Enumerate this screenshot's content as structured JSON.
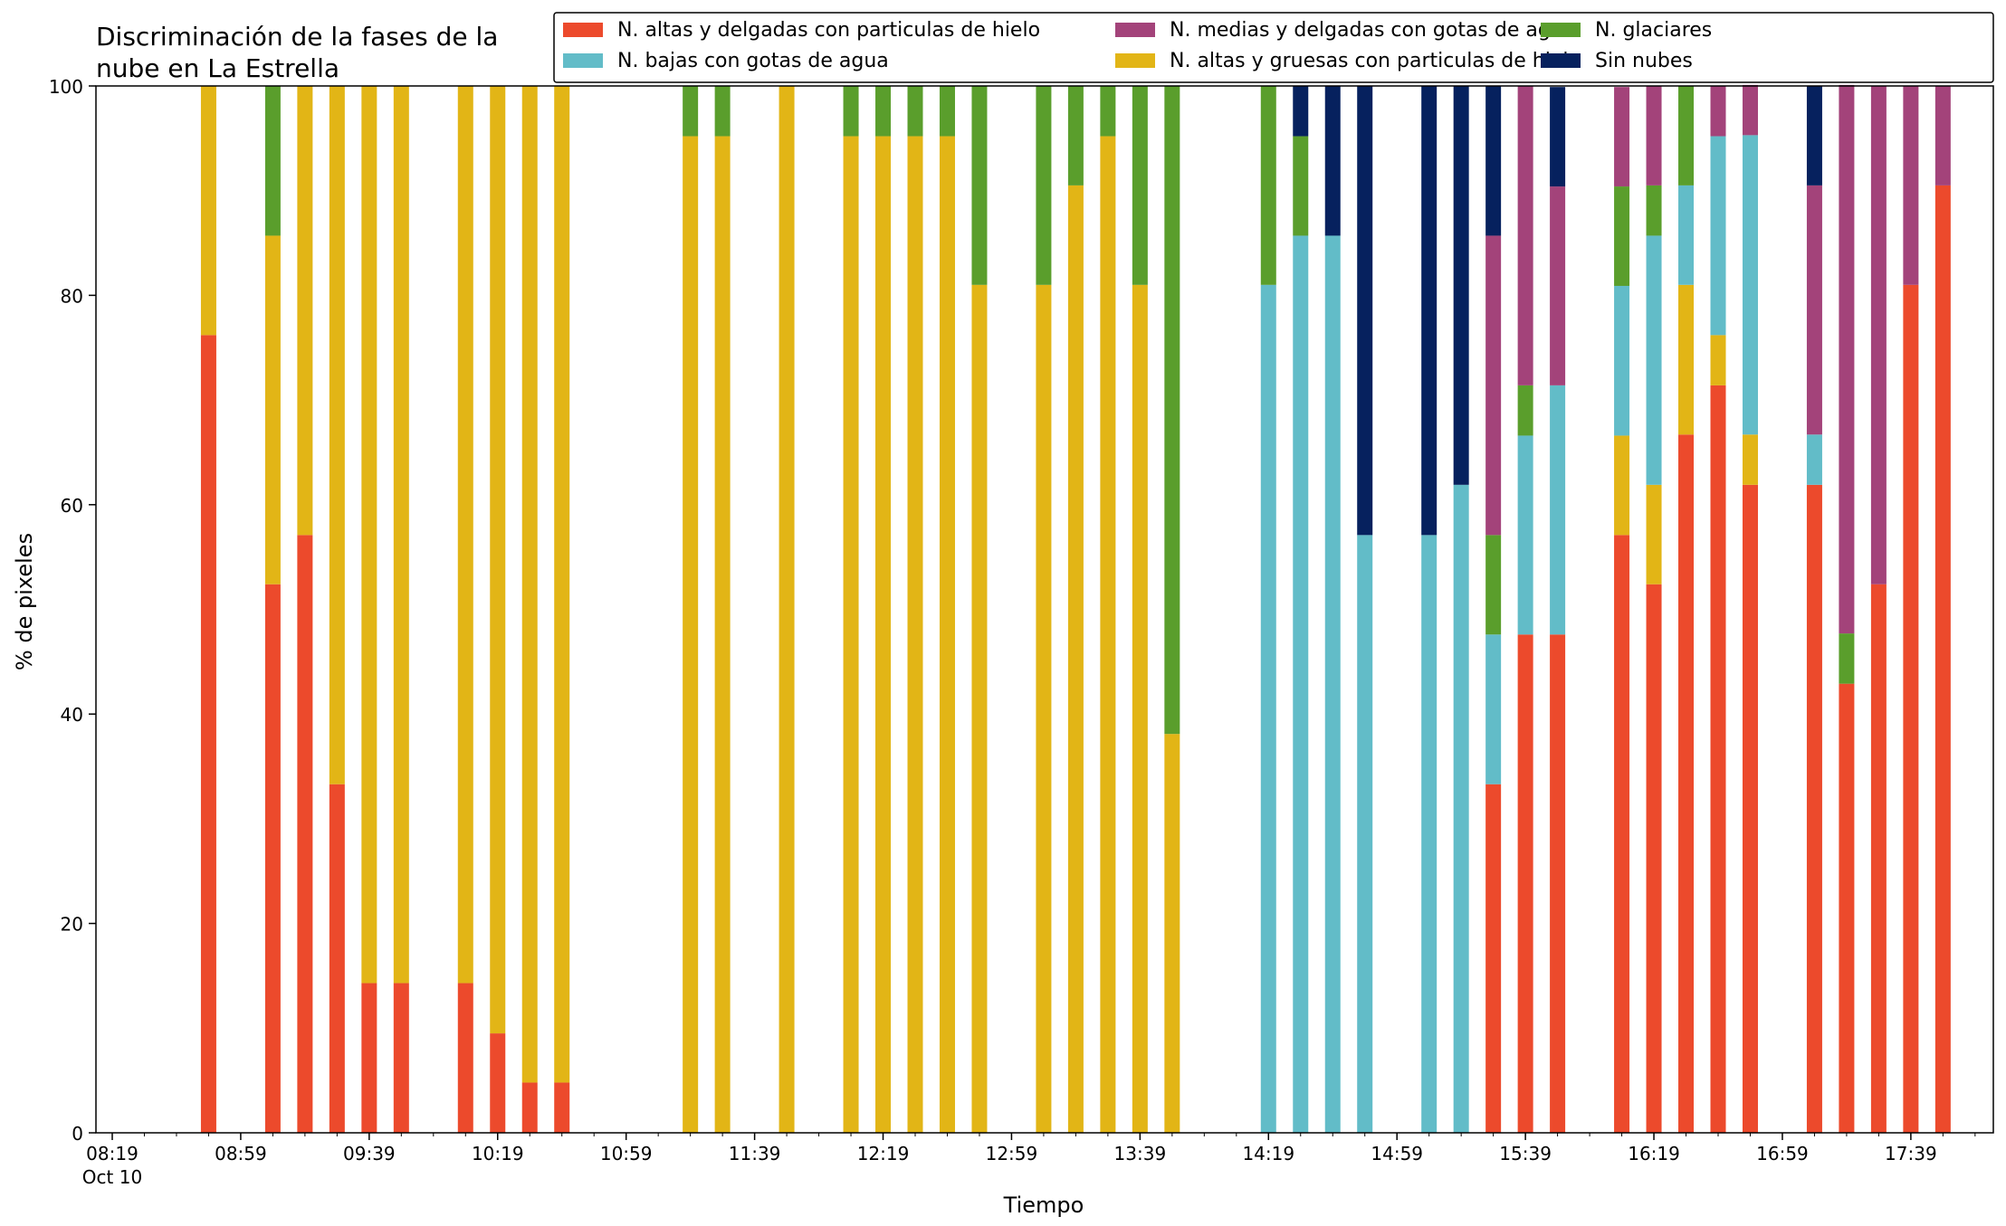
{
  "chart_data": {
    "type": "bar",
    "title": "Discriminación de la fases de la\nnube en La Estrella",
    "xlabel": "Tiempo",
    "ylabel": "% de pixeles",
    "ylim": [
      0,
      100
    ],
    "yticks": [
      0,
      20,
      40,
      60,
      80,
      100
    ],
    "x_start": "08:19",
    "x_step_minutes": 10,
    "xticks": [
      {
        "label": "08:19",
        "sublabel": "Oct 10",
        "slot": 0
      },
      {
        "label": "08:59",
        "slot": 4
      },
      {
        "label": "09:39",
        "slot": 8
      },
      {
        "label": "10:19",
        "slot": 12
      },
      {
        "label": "10:59",
        "slot": 16
      },
      {
        "label": "11:39",
        "slot": 20
      },
      {
        "label": "12:19",
        "slot": 24
      },
      {
        "label": "12:59",
        "slot": 28
      },
      {
        "label": "13:39",
        "slot": 32
      },
      {
        "label": "14:19",
        "slot": 36
      },
      {
        "label": "14:59",
        "slot": 40
      },
      {
        "label": "15:39",
        "slot": 44
      },
      {
        "label": "16:19",
        "slot": 48
      },
      {
        "label": "16:59",
        "slot": 52
      },
      {
        "label": "17:39",
        "slot": 56
      }
    ],
    "x_minor_count": 60,
    "legend_position": "top-right",
    "stacked": true,
    "series": [
      {
        "name": "N. altas y delgadas con particulas de hielo",
        "color": "#ec4a2c"
      },
      {
        "name": "N. altas y gruesas con particulas de hielo",
        "color": "#e2b516"
      },
      {
        "name": "N. bajas con gotas de agua",
        "color": "#62bcc8"
      },
      {
        "name": "N. glaciares",
        "color": "#5a9e2c"
      },
      {
        "name": "N. medias y delgadas con gotas de agua",
        "color": "#a3437a"
      },
      {
        "name": "Sin nubes",
        "color": "#06215e"
      }
    ],
    "legend_order": [
      0,
      2,
      4,
      1,
      3,
      5
    ],
    "bars": [
      {
        "time": "08:49",
        "slot": 3,
        "values": [
          76.2,
          23.8,
          0,
          0,
          0,
          0
        ]
      },
      {
        "time": "08:59",
        "slot": 5,
        "values": [
          52.4,
          33.3,
          0,
          14.3,
          0,
          0
        ]
      },
      {
        "time": "09:09",
        "slot": 6,
        "values": [
          57.1,
          42.9,
          0,
          0,
          0,
          0
        ]
      },
      {
        "time": "09:19",
        "slot": 7,
        "values": [
          33.3,
          66.7,
          0,
          0,
          0,
          0
        ]
      },
      {
        "time": "09:29",
        "slot": 8,
        "values": [
          14.3,
          85.7,
          0,
          0,
          0,
          0
        ]
      },
      {
        "time": "09:39",
        "slot": 9,
        "values": [
          14.3,
          85.7,
          0,
          0,
          0,
          0
        ]
      },
      {
        "time": "10:09",
        "slot": 11,
        "values": [
          14.3,
          85.7,
          0,
          0,
          0,
          0
        ]
      },
      {
        "time": "10:19",
        "slot": 12,
        "values": [
          9.5,
          90.5,
          0,
          0,
          0,
          0
        ]
      },
      {
        "time": "10:29",
        "slot": 13,
        "values": [
          4.8,
          95.2,
          0,
          0,
          0,
          0
        ]
      },
      {
        "time": "10:39",
        "slot": 14,
        "values": [
          4.8,
          95.2,
          0,
          0,
          0,
          0
        ]
      },
      {
        "time": "11:19",
        "slot": 18,
        "values": [
          0,
          95.2,
          0,
          4.8,
          0,
          0
        ]
      },
      {
        "time": "11:29",
        "slot": 19,
        "values": [
          0,
          95.2,
          0,
          4.8,
          0,
          0
        ]
      },
      {
        "time": "11:49",
        "slot": 21,
        "values": [
          0,
          100,
          0,
          0,
          0,
          0
        ]
      },
      {
        "time": "12:09",
        "slot": 23,
        "values": [
          0,
          95.2,
          0,
          4.8,
          0,
          0
        ]
      },
      {
        "time": "12:19",
        "slot": 24,
        "values": [
          0,
          95.2,
          0,
          4.8,
          0,
          0
        ]
      },
      {
        "time": "12:29",
        "slot": 25,
        "values": [
          0,
          95.2,
          0,
          4.8,
          0,
          0
        ]
      },
      {
        "time": "12:39",
        "slot": 26,
        "values": [
          0,
          95.2,
          0,
          4.8,
          0,
          0
        ]
      },
      {
        "time": "12:49",
        "slot": 27,
        "values": [
          0,
          81.0,
          0,
          19.0,
          0,
          0
        ]
      },
      {
        "time": "13:09",
        "slot": 29,
        "values": [
          0,
          81.0,
          0,
          19.0,
          0,
          0
        ]
      },
      {
        "time": "13:19",
        "slot": 30,
        "values": [
          0,
          90.5,
          0,
          9.5,
          0,
          0
        ]
      },
      {
        "time": "13:29",
        "slot": 31,
        "values": [
          0,
          95.2,
          0,
          4.8,
          0,
          0
        ]
      },
      {
        "time": "13:39",
        "slot": 32,
        "values": [
          0,
          81.0,
          0,
          19.0,
          0,
          0
        ]
      },
      {
        "time": "13:49",
        "slot": 33,
        "values": [
          0,
          38.1,
          0,
          61.9,
          0,
          0
        ]
      },
      {
        "time": "14:19",
        "slot": 36,
        "values": [
          0,
          0,
          81.0,
          19.0,
          0,
          0
        ]
      },
      {
        "time": "14:29",
        "slot": 37,
        "values": [
          0,
          0,
          85.7,
          9.5,
          0,
          4.8
        ]
      },
      {
        "time": "14:39",
        "slot": 38,
        "values": [
          0,
          0,
          85.7,
          0,
          0,
          14.3
        ]
      },
      {
        "time": "14:49",
        "slot": 39,
        "values": [
          0,
          0,
          57.1,
          0,
          0,
          42.9
        ]
      },
      {
        "time": "15:09",
        "slot": 41,
        "values": [
          0,
          0,
          57.1,
          0,
          0,
          42.9
        ]
      },
      {
        "time": "15:19",
        "slot": 42,
        "values": [
          0,
          0,
          61.9,
          0,
          0,
          38.1
        ]
      },
      {
        "time": "15:29",
        "slot": 43,
        "values": [
          33.3,
          0,
          14.3,
          9.5,
          28.6,
          14.3
        ]
      },
      {
        "time": "15:39",
        "slot": 44,
        "values": [
          47.6,
          0,
          19.0,
          4.8,
          28.6,
          0
        ]
      },
      {
        "time": "15:49",
        "slot": 45,
        "values": [
          47.6,
          0,
          23.8,
          0,
          19.0,
          9.5
        ]
      },
      {
        "time": "16:09",
        "slot": 47,
        "values": [
          57.1,
          9.5,
          14.3,
          9.5,
          9.5,
          0
        ]
      },
      {
        "time": "16:19",
        "slot": 48,
        "values": [
          52.4,
          9.5,
          23.8,
          4.8,
          9.5,
          0
        ]
      },
      {
        "time": "16:29",
        "slot": 49,
        "values": [
          66.7,
          14.3,
          9.5,
          9.5,
          0,
          0
        ]
      },
      {
        "time": "16:39",
        "slot": 50,
        "values": [
          71.4,
          4.8,
          19.0,
          0,
          4.8,
          0
        ]
      },
      {
        "time": "16:49",
        "slot": 51,
        "values": [
          61.9,
          4.8,
          28.6,
          0,
          4.8,
          0
        ]
      },
      {
        "time": "17:09",
        "slot": 53,
        "values": [
          61.9,
          0,
          4.8,
          0,
          23.8,
          9.5
        ]
      },
      {
        "time": "17:19",
        "slot": 54,
        "values": [
          42.9,
          0,
          0,
          4.8,
          52.4,
          0
        ]
      },
      {
        "time": "17:29",
        "slot": 55,
        "values": [
          52.4,
          0,
          0,
          0,
          47.6,
          0
        ]
      },
      {
        "time": "17:39",
        "slot": 56,
        "values": [
          81.0,
          0,
          0,
          0,
          19.0,
          0
        ]
      },
      {
        "time": "17:49",
        "slot": 57,
        "values": [
          90.5,
          0,
          0,
          0,
          9.5,
          0
        ]
      }
    ]
  }
}
